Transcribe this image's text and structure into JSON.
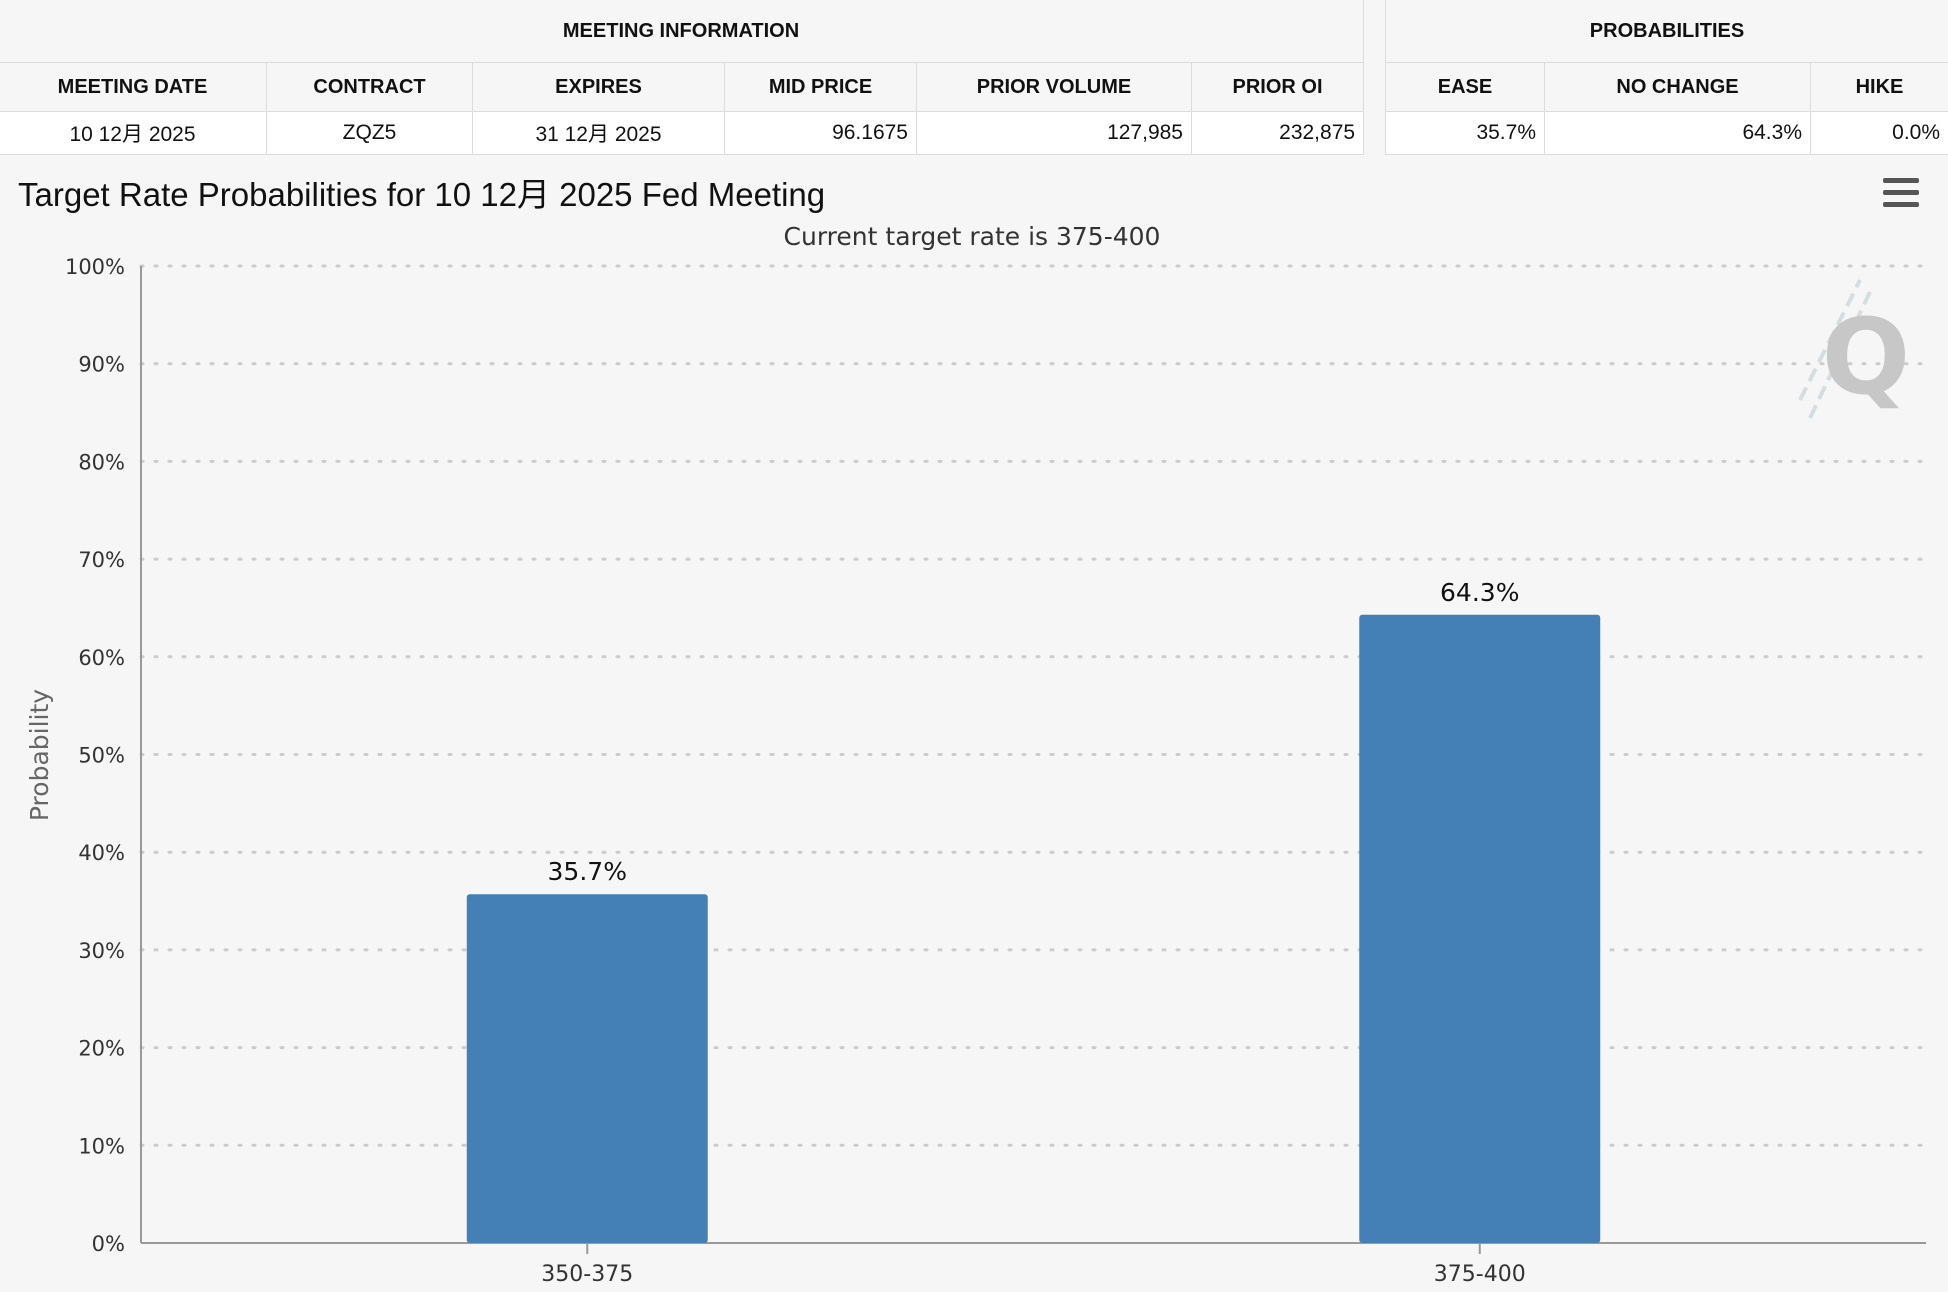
{
  "meeting_info": {
    "group_title": "MEETING INFORMATION",
    "headers": [
      "MEETING DATE",
      "CONTRACT",
      "EXPIRES",
      "MID PRICE",
      "PRIOR VOLUME",
      "PRIOR OI"
    ],
    "values": [
      "10 12月 2025",
      "ZQZ5",
      "31 12月 2025",
      "96.1675",
      "127,985",
      "232,875"
    ]
  },
  "probabilities": {
    "group_title": "PROBABILITIES",
    "headers": [
      "EASE",
      "NO CHANGE",
      "HIKE"
    ],
    "values": [
      "35.7%",
      "64.3%",
      "0.0%"
    ]
  },
  "chart_title": "Target Rate Probabilities for 10 12月 2025 Fed Meeting",
  "menu_icon": "hamburger-menu-icon",
  "watermark_text": "Q",
  "chart_data": {
    "type": "bar",
    "subtitle": "Current target rate is 375-400",
    "categories": [
      "350-375",
      "375-400"
    ],
    "values": [
      35.7,
      64.3
    ],
    "data_labels": [
      "35.7%",
      "64.3%"
    ],
    "ylabel": "Probability",
    "ylim": [
      0,
      100
    ],
    "yticks": [
      0,
      10,
      20,
      30,
      40,
      50,
      60,
      70,
      80,
      90,
      100
    ],
    "ytick_labels": [
      "0%",
      "10%",
      "20%",
      "30%",
      "40%",
      "50%",
      "60%",
      "70%",
      "80%",
      "90%",
      "100%"
    ],
    "grid": true,
    "grid_style": "dotted",
    "legend": "none",
    "bar_color": "#4480b5",
    "axis_color": "#999999",
    "grid_color": "#cccccc"
  }
}
